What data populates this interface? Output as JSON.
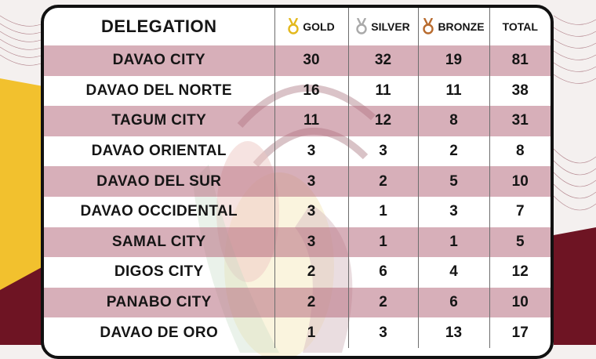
{
  "colors": {
    "stripe": "#c28d99",
    "maroon": "#6e1423",
    "yellow": "#f2c12e",
    "gold_medal": "#e3b81c",
    "silver_medal": "#a9a9a9",
    "bronze_medal": "#b86b2e"
  },
  "table": {
    "headers": {
      "delegation": "DELEGATION",
      "gold": "GOLD",
      "silver": "SILVER",
      "bronze": "BRONZE",
      "total": "TOTAL"
    },
    "header_icons": [
      "gold-medal-icon",
      "silver-medal-icon",
      "bronze-medal-icon"
    ],
    "rows": [
      {
        "delegation": "DAVAO CITY",
        "gold": "30",
        "silver": "32",
        "bronze": "19",
        "total": "81"
      },
      {
        "delegation": "DAVAO DEL NORTE",
        "gold": "16",
        "silver": "11",
        "bronze": "11",
        "total": "38"
      },
      {
        "delegation": "TAGUM CITY",
        "gold": "11",
        "silver": "12",
        "bronze": "8",
        "total": "31"
      },
      {
        "delegation": "DAVAO ORIENTAL",
        "gold": "3",
        "silver": "3",
        "bronze": "2",
        "total": "8"
      },
      {
        "delegation": "DAVAO DEL SUR",
        "gold": "3",
        "silver": "2",
        "bronze": "5",
        "total": "10"
      },
      {
        "delegation": "DAVAO OCCIDENTAL",
        "gold": "3",
        "silver": "1",
        "bronze": "3",
        "total": "7"
      },
      {
        "delegation": "SAMAL CITY",
        "gold": "3",
        "silver": "1",
        "bronze": "1",
        "total": "5"
      },
      {
        "delegation": "DIGOS CITY",
        "gold": "2",
        "silver": "6",
        "bronze": "4",
        "total": "12"
      },
      {
        "delegation": "PANABO CITY",
        "gold": "2",
        "silver": "2",
        "bronze": "6",
        "total": "10"
      },
      {
        "delegation": "DAVAO DE ORO",
        "gold": "1",
        "silver": "3",
        "bronze": "13",
        "total": "17"
      }
    ]
  }
}
